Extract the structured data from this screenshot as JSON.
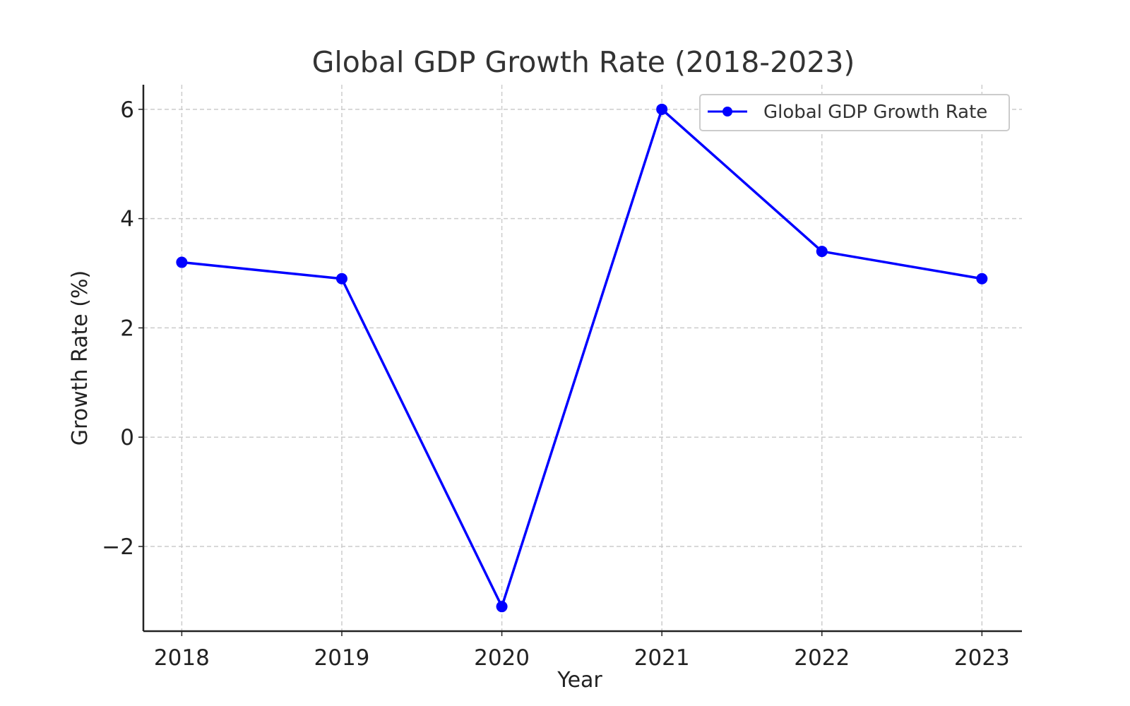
{
  "chart_data": {
    "type": "line",
    "title": "Global GDP Growth Rate (2018-2023)",
    "xlabel": "Year",
    "ylabel": "Growth Rate (%)",
    "x": [
      "2018",
      "2019",
      "2020",
      "2021",
      "2022",
      "2023"
    ],
    "series": [
      {
        "name": "Global GDP Growth Rate",
        "values": [
          3.2,
          2.9,
          -3.1,
          6.0,
          3.4,
          2.9
        ],
        "color": "#0000ff",
        "marker": "circle"
      }
    ],
    "yticks": [
      -2,
      0,
      2,
      4,
      6
    ],
    "ytick_labels": [
      "−2",
      "0",
      "2",
      "4",
      "6"
    ],
    "ylim": [
      -3.55,
      6.45
    ],
    "xlim": [
      2017.76,
      2023.25
    ],
    "grid": true,
    "grid_style": "dashed",
    "legend_position": "top-right",
    "colors": {
      "line": "#0000ff",
      "grid": "#cccccc",
      "axis": "#222222",
      "title": "#333333"
    }
  }
}
